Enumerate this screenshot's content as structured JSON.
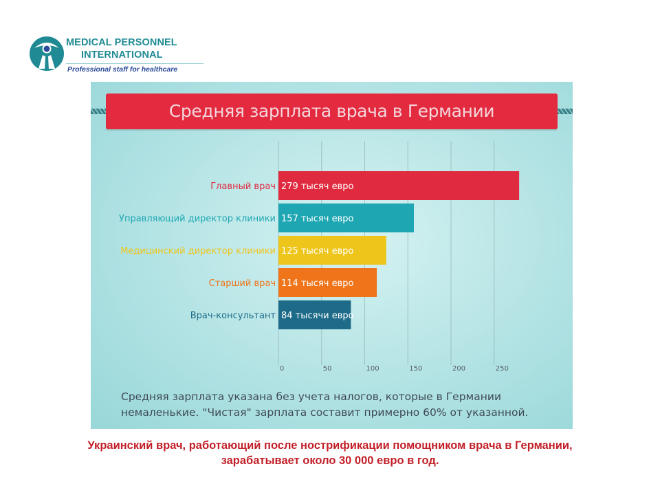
{
  "logo": {
    "line1": "MEDICAL PERSONNEL",
    "line2": "INTERNATIONAL",
    "tagline": "Professional staff for healthcare",
    "color": "#1f8a93"
  },
  "footnote": "Средняя зарплата указана без учета налогов, которые в Германии немаленькие. \"Чистая\" зарплата составит примерно 60% от указанной.",
  "caption": {
    "line1": "Украинский врач, работающий после нострификации помощником врача в Германии,",
    "line2": "зарабатывает  около 30 000 евро в год."
  },
  "colors": {
    "banner": "#e32a3e",
    "background": "#b3e3e4",
    "caption": "#c21f28"
  },
  "chart_data": {
    "type": "bar",
    "orientation": "horizontal",
    "title": "Средняя зарплата врача в Германии",
    "categories": [
      "Главный врач",
      "Управляющий директор клиники",
      "Медицинский директор клиники",
      "Старший врач",
      "Врач-консультант"
    ],
    "values": [
      279,
      157,
      125,
      114,
      84
    ],
    "value_labels": [
      "279 тысяч евро",
      "157 тысяч евро",
      "125 тысяч евро",
      "114 тысяч евро",
      "84 тысячи евро"
    ],
    "bar_colors": [
      "#e02a3f",
      "#1ea7b3",
      "#eec51b",
      "#ef741a",
      "#1d6b88"
    ],
    "label_colors": [
      "#e02a3f",
      "#1ea7b3",
      "#eec51b",
      "#ef741a",
      "#1d6b88"
    ],
    "x_ticks": [
      0,
      50,
      100,
      150,
      200,
      250
    ],
    "xlim": [
      0,
      280
    ],
    "grid": true
  }
}
